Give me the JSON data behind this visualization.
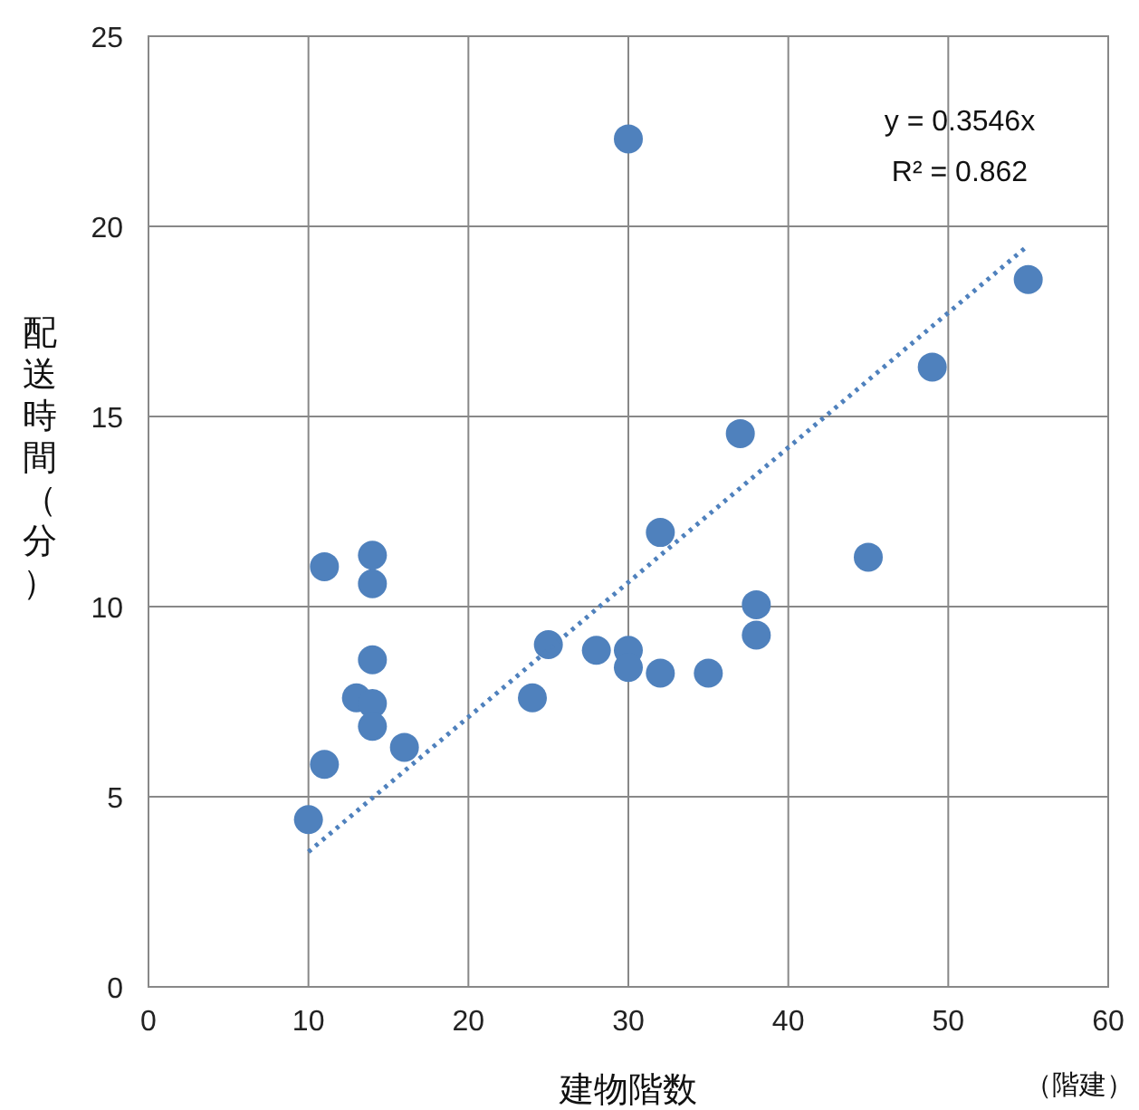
{
  "chart_data": {
    "type": "scatter",
    "xlabel": "建物階数",
    "ylabel": "配送時間（分）",
    "xlim": [
      0,
      60
    ],
    "xticks": [
      0,
      10,
      20,
      30,
      40,
      50,
      60
    ],
    "ylim": [
      0,
      25
    ],
    "yticks": [
      0,
      5,
      10,
      15,
      20,
      25
    ],
    "grid": true,
    "marker": "circle",
    "series": [
      {
        "color": "#4f81bd",
        "x": [
          10,
          11,
          11,
          13,
          14,
          14,
          14,
          14,
          14,
          16,
          24,
          25,
          28,
          30,
          30,
          30,
          32,
          32,
          35,
          37,
          38,
          38,
          45,
          49,
          55
        ],
        "values": [
          4.4,
          5.85,
          11.05,
          7.6,
          7.45,
          6.85,
          8.6,
          10.6,
          11.35,
          6.3,
          7.6,
          9.0,
          8.85,
          22.3,
          8.85,
          8.4,
          11.95,
          8.25,
          8.25,
          14.55,
          10.05,
          9.25,
          11.3,
          16.3,
          18.6
        ]
      },
      {
        "type": "line",
        "color": "#4f81bd",
        "line_style": "dotted",
        "marker": "none",
        "x": [
          10,
          55
        ],
        "values": [
          3.55,
          19.5
        ]
      }
    ],
    "annotations": [
      "y = 0.3546x",
      "R² = 0.862",
      "（階建）"
    ]
  }
}
